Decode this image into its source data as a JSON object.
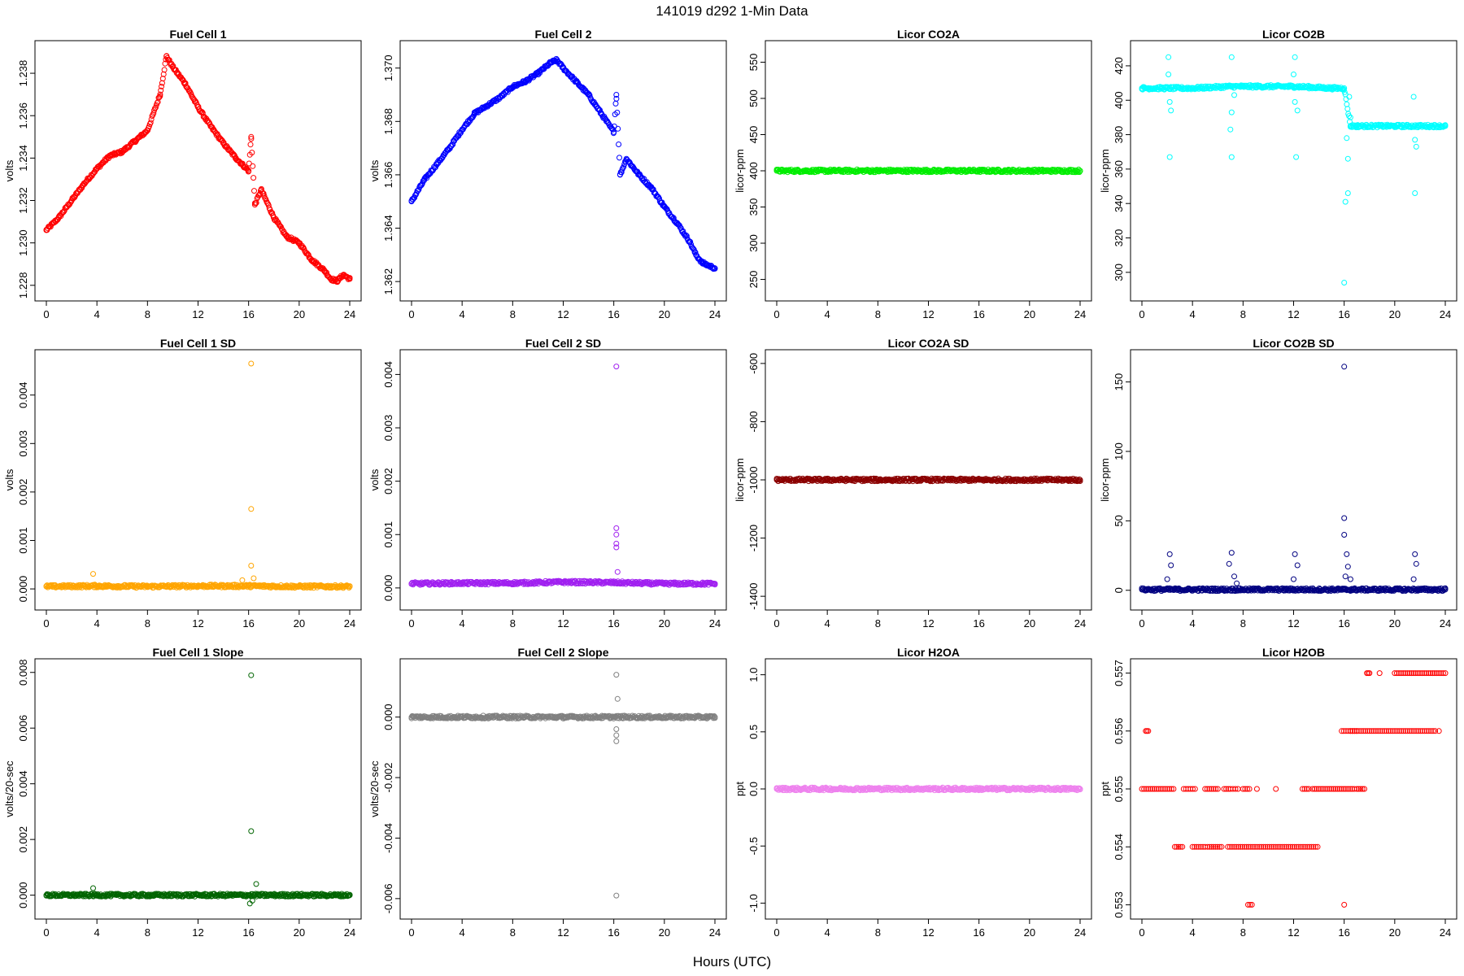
{
  "figure": {
    "title": "141019    d292    1-Min Data",
    "xlabel": "Hours (UTC)"
  },
  "chart_data": [
    {
      "type": "scatter",
      "title": "Fuel Cell 1",
      "ylabel": "volts",
      "xlabel": "",
      "color": "#ff0000",
      "xlim": [
        0,
        24
      ],
      "ylim": [
        1.2278,
        1.239
      ],
      "xticks": [
        0,
        4,
        8,
        12,
        16,
        20,
        24
      ],
      "yticks": [
        1.228,
        1.23,
        1.232,
        1.234,
        1.236,
        1.238
      ],
      "ytick_labels": [
        "1.228",
        "1.230",
        "1.232",
        "1.234",
        "1.236",
        "1.238"
      ],
      "series": [
        {
          "x": [
            0,
            1,
            2,
            3,
            4,
            5,
            6,
            7,
            8,
            9,
            9.5,
            10,
            11,
            12,
            13,
            14,
            15,
            16,
            16.2,
            16.5,
            17,
            18,
            19,
            20,
            21,
            22,
            22.5,
            23,
            23.5,
            24
          ],
          "y": [
            1.2306,
            1.2312,
            1.232,
            1.2328,
            1.2335,
            1.2341,
            1.2343,
            1.2348,
            1.2353,
            1.237,
            1.2388,
            1.2383,
            1.2375,
            1.2364,
            1.2355,
            1.2347,
            1.234,
            1.2334,
            1.235,
            1.2318,
            1.2325,
            1.2312,
            1.2303,
            1.23,
            1.2292,
            1.2287,
            1.2283,
            1.2282,
            1.2285,
            1.2283
          ]
        }
      ]
    },
    {
      "type": "scatter",
      "title": "Fuel Cell 2",
      "ylabel": "volts",
      "xlabel": "",
      "color": "#0000ff",
      "xlim": [
        0,
        24
      ],
      "ylim": [
        1.3617,
        1.3706
      ],
      "xticks": [
        0,
        4,
        8,
        12,
        16,
        20,
        24
      ],
      "yticks": [
        1.362,
        1.364,
        1.366,
        1.368,
        1.37
      ],
      "ytick_labels": [
        "1.362",
        "1.364",
        "1.366",
        "1.368",
        "1.370"
      ],
      "series": [
        {
          "x": [
            0,
            1,
            2,
            3,
            4,
            5,
            6,
            7,
            8,
            9,
            10,
            11,
            11.5,
            12,
            13,
            14,
            15,
            16,
            16.2,
            16.5,
            17,
            18,
            19,
            20,
            21,
            22,
            22.5,
            23,
            24
          ],
          "y": [
            1.365,
            1.3658,
            1.3664,
            1.367,
            1.3677,
            1.3683,
            1.3686,
            1.3689,
            1.3693,
            1.3695,
            1.3698,
            1.3702,
            1.3703,
            1.37,
            1.3695,
            1.369,
            1.3683,
            1.3676,
            1.369,
            1.366,
            1.3666,
            1.366,
            1.3655,
            1.3648,
            1.3642,
            1.3635,
            1.363,
            1.3627,
            1.3625
          ]
        }
      ]
    },
    {
      "type": "scatter",
      "title": "Licor CO2A",
      "ylabel": "licor-ppm",
      "xlabel": "",
      "color": "#00ee00",
      "xlim": [
        0,
        24
      ],
      "ylim": [
        236,
        564
      ],
      "xticks": [
        0,
        4,
        8,
        12,
        16,
        20,
        24
      ],
      "yticks": [
        250,
        300,
        350,
        400,
        450,
        500,
        550
      ],
      "ytick_labels": [
        "250",
        "300",
        "350",
        "400",
        "450",
        "500",
        "550"
      ],
      "series": [
        {
          "x": [
            0,
            4,
            8,
            12,
            16,
            20,
            24
          ],
          "y": [
            400,
            400,
            400,
            400,
            400,
            400,
            400
          ]
        }
      ]
    },
    {
      "type": "scatter",
      "title": "Licor CO2B",
      "ylabel": "licor-ppm",
      "xlabel": "",
      "color": "#00ffff",
      "xlim": [
        0,
        24
      ],
      "ylim": [
        290,
        428
      ],
      "xticks": [
        0,
        4,
        8,
        12,
        16,
        20,
        24
      ],
      "yticks": [
        300,
        320,
        340,
        360,
        380,
        400,
        420
      ],
      "ytick_labels": [
        "300",
        "320",
        "340",
        "360",
        "380",
        "400",
        "420"
      ],
      "series": [
        {
          "x": [
            0,
            2,
            4,
            7,
            8,
            12,
            15,
            16,
            16.5,
            17,
            20,
            24
          ],
          "y": [
            407,
            407,
            407,
            408,
            408,
            408,
            407,
            407,
            385,
            385,
            385,
            385
          ]
        }
      ],
      "outliers": [
        [
          2.1,
          425
        ],
        [
          2.1,
          415
        ],
        [
          2.2,
          399
        ],
        [
          2.3,
          394
        ],
        [
          2.2,
          367
        ],
        [
          7.1,
          425
        ],
        [
          7.0,
          383
        ],
        [
          7.1,
          393
        ],
        [
          7.1,
          367
        ],
        [
          7.3,
          403
        ],
        [
          12.1,
          425
        ],
        [
          12.0,
          415
        ],
        [
          12.1,
          399
        ],
        [
          12.3,
          394
        ],
        [
          12.2,
          367
        ],
        [
          16.0,
          294
        ],
        [
          16.1,
          341
        ],
        [
          16.2,
          378
        ],
        [
          16.3,
          346
        ],
        [
          16.3,
          366
        ],
        [
          16.4,
          402
        ],
        [
          16.5,
          390
        ],
        [
          21.5,
          402
        ],
        [
          21.6,
          377
        ],
        [
          21.7,
          373
        ],
        [
          21.6,
          346
        ]
      ]
    },
    {
      "type": "scatter",
      "title": "Fuel Cell 1 SD",
      "ylabel": "volts",
      "xlabel": "",
      "color": "#ffa500",
      "xlim": [
        0,
        24
      ],
      "ylim": [
        -0.0002,
        0.0047
      ],
      "xticks": [
        0,
        4,
        8,
        12,
        16,
        20,
        24
      ],
      "yticks": [
        0,
        0.001,
        0.002,
        0.003,
        0.004
      ],
      "ytick_labels": [
        "0.000",
        "0.001",
        "0.002",
        "0.003",
        "0.004"
      ],
      "series": [
        {
          "x": [
            0,
            4,
            8,
            12,
            16,
            20,
            24
          ],
          "y": [
            5e-05,
            6e-05,
            5e-05,
            6e-05,
            6e-05,
            5e-05,
            5e-05
          ]
        }
      ],
      "outliers": [
        [
          3.7,
          0.00031
        ],
        [
          16.2,
          0.00465
        ],
        [
          16.2,
          0.00165
        ],
        [
          16.2,
          0.00048
        ],
        [
          16.4,
          0.00022
        ],
        [
          15.5,
          0.00018
        ]
      ]
    },
    {
      "type": "scatter",
      "title": "Fuel Cell 2 SD",
      "ylabel": "volts",
      "xlabel": "",
      "color": "#a020f0",
      "xlim": [
        0,
        24
      ],
      "ylim": [
        -0.0002,
        0.00425
      ],
      "xticks": [
        0,
        4,
        8,
        12,
        16,
        20,
        24
      ],
      "yticks": [
        0,
        0.001,
        0.002,
        0.003,
        0.004
      ],
      "ytick_labels": [
        "0.000",
        "0.001",
        "0.002",
        "0.003",
        "0.004"
      ],
      "series": [
        {
          "x": [
            0,
            4,
            8,
            12,
            16,
            20,
            24
          ],
          "y": [
            8e-05,
            9e-05,
            9e-05,
            0.00011,
            0.0001,
            8e-05,
            8e-05
          ]
        }
      ],
      "outliers": [
        [
          16.2,
          0.00415
        ],
        [
          16.2,
          0.00112
        ],
        [
          16.2,
          0.001
        ],
        [
          16.2,
          0.00083
        ],
        [
          16.2,
          0.00076
        ],
        [
          16.3,
          0.0003
        ]
      ]
    },
    {
      "type": "scatter",
      "title": "Licor CO2A SD",
      "ylabel": "licor-ppm",
      "xlabel": "",
      "color": "#8b0000",
      "xlim": [
        0,
        24
      ],
      "ylim": [
        -1408,
        -592
      ],
      "xticks": [
        0,
        4,
        8,
        12,
        16,
        20,
        24
      ],
      "yticks": [
        -1400,
        -1200,
        -1000,
        -800,
        -600
      ],
      "ytick_labels": [
        "-1400",
        "-1200",
        "-1000",
        "-800",
        "-600"
      ],
      "series": [
        {
          "x": [
            0,
            4,
            8,
            12,
            16,
            20,
            24
          ],
          "y": [
            -1000,
            -1000,
            -1000,
            -1000,
            -1000,
            -1000,
            -1000
          ]
        }
      ]
    },
    {
      "type": "scatter",
      "title": "Licor CO2B SD",
      "ylabel": "licor-ppm",
      "xlabel": "",
      "color": "#000080",
      "xlim": [
        0,
        24
      ],
      "ylim": [
        -6,
        165
      ],
      "xticks": [
        0,
        4,
        8,
        12,
        16,
        20,
        24
      ],
      "yticks": [
        0,
        50,
        100,
        150
      ],
      "ytick_labels": [
        "0",
        "50",
        "100",
        "150"
      ],
      "series": [
        {
          "x": [
            0,
            4,
            8,
            12,
            16,
            20,
            24
          ],
          "y": [
            0.5,
            0.5,
            0.5,
            0.5,
            0.5,
            0.5,
            0.5
          ]
        }
      ],
      "outliers": [
        [
          2.2,
          26
        ],
        [
          2.3,
          18
        ],
        [
          2.0,
          8
        ],
        [
          7.1,
          27
        ],
        [
          6.9,
          19
        ],
        [
          7.3,
          10
        ],
        [
          7.5,
          5
        ],
        [
          12.1,
          26
        ],
        [
          12.3,
          18
        ],
        [
          12.0,
          8
        ],
        [
          16.0,
          161
        ],
        [
          16.0,
          52
        ],
        [
          16.0,
          40
        ],
        [
          16.2,
          26
        ],
        [
          16.3,
          17
        ],
        [
          16.1,
          10
        ],
        [
          16.5,
          8
        ],
        [
          16.6,
          1
        ],
        [
          21.6,
          26
        ],
        [
          21.7,
          19
        ],
        [
          21.5,
          8
        ],
        [
          21.8,
          1
        ]
      ]
    },
    {
      "type": "scatter",
      "title": "Fuel Cell 1 Slope",
      "ylabel": "volts/20-sec",
      "xlabel": "",
      "color": "#006400",
      "xlim": [
        0,
        24
      ],
      "ylim": [
        -0.00045,
        0.00808
      ],
      "xticks": [
        0,
        4,
        8,
        12,
        16,
        20,
        24
      ],
      "yticks": [
        0,
        0.002,
        0.004,
        0.006,
        0.008
      ],
      "ytick_labels": [
        "0.000",
        "0.002",
        "0.004",
        "0.006",
        "0.008"
      ],
      "series": [
        {
          "x": [
            0,
            4,
            8,
            12,
            16,
            20,
            24
          ],
          "y": [
            0,
            0,
            0,
            0,
            0,
            0,
            0
          ]
        }
      ],
      "outliers": [
        [
          3.7,
          0.00025
        ],
        [
          16.2,
          0.0079
        ],
        [
          16.2,
          0.0023
        ],
        [
          16.6,
          0.0004
        ],
        [
          16.1,
          -0.0003
        ],
        [
          16.3,
          -0.0002
        ]
      ]
    },
    {
      "type": "scatter",
      "title": "Fuel Cell 2 Slope",
      "ylabel": "volts/20-sec",
      "xlabel": "",
      "color": "#808080",
      "xlim": [
        0,
        24
      ],
      "ylim": [
        -0.0063,
        0.00155
      ],
      "xticks": [
        0,
        4,
        8,
        12,
        16,
        20,
        24
      ],
      "yticks": [
        -0.006,
        -0.004,
        -0.002,
        0
      ],
      "ytick_labels": [
        "-0.006",
        "-0.004",
        "-0.002",
        "0.000"
      ],
      "series": [
        {
          "x": [
            0,
            4,
            8,
            12,
            16,
            20,
            24
          ],
          "y": [
            0,
            0,
            0,
            0,
            0,
            0,
            0
          ]
        }
      ],
      "outliers": [
        [
          16.2,
          0.0014
        ],
        [
          16.3,
          0.0006
        ],
        [
          16.2,
          -0.0004
        ],
        [
          16.2,
          -0.0006
        ],
        [
          16.2,
          -0.0008
        ],
        [
          16.2,
          -0.0059
        ]
      ]
    },
    {
      "type": "scatter",
      "title": "Licor H2OA",
      "ylabel": "ppt",
      "xlabel": "",
      "color": "#ee82ee",
      "xlim": [
        0,
        24
      ],
      "ylim": [
        -1.04,
        1.04
      ],
      "xticks": [
        0,
        4,
        8,
        12,
        16,
        20,
        24
      ],
      "yticks": [
        -1,
        -0.5,
        0,
        0.5,
        1
      ],
      "ytick_labels": [
        "-1.0",
        "-0.5",
        "0.0",
        "0.5",
        "1.0"
      ],
      "series": [
        {
          "x": [
            0,
            4,
            8,
            12,
            16,
            20,
            24
          ],
          "y": [
            0,
            0,
            0,
            0,
            0,
            0,
            0
          ]
        }
      ]
    },
    {
      "type": "scatter",
      "title": "Licor H2OB",
      "ylabel": "ppt",
      "xlabel": "",
      "color": "#ff0000",
      "xlim": [
        0,
        24
      ],
      "ylim": [
        0.55295,
        0.55705
      ],
      "xticks": [
        0,
        4,
        8,
        12,
        16,
        20,
        24
      ],
      "yticks": [
        0.553,
        0.554,
        0.555,
        0.556,
        0.557
      ],
      "ytick_labels": [
        "0.553",
        "0.554",
        "0.555",
        "0.556",
        "0.557"
      ],
      "segments": [
        [
          0.0,
          2.5,
          0.555
        ],
        [
          0.3,
          0.5,
          0.556
        ],
        [
          2.6,
          3.2,
          0.554
        ],
        [
          3.3,
          4.2,
          0.555
        ],
        [
          4.0,
          5.0,
          0.554
        ],
        [
          5.0,
          6.0,
          0.555
        ],
        [
          5.2,
          6.3,
          0.554
        ],
        [
          6.5,
          7.0,
          0.555
        ],
        [
          6.8,
          13.9,
          0.554
        ],
        [
          7.2,
          7.6,
          0.555
        ],
        [
          8.0,
          8.5,
          0.555
        ],
        [
          8.4,
          8.7,
          0.553
        ],
        [
          12.7,
          13.2,
          0.555
        ],
        [
          13.5,
          16.8,
          0.555
        ],
        [
          15.8,
          17.0,
          0.556
        ],
        [
          17.0,
          17.6,
          0.555
        ],
        [
          16.5,
          23.2,
          0.556
        ],
        [
          17.8,
          18.0,
          0.557
        ],
        [
          20.0,
          24.0,
          0.557
        ]
      ],
      "outliers": [
        [
          9.1,
          0.555
        ],
        [
          10.6,
          0.555
        ],
        [
          16.0,
          0.553
        ],
        [
          18.8,
          0.557
        ],
        [
          23.5,
          0.556
        ]
      ]
    }
  ]
}
